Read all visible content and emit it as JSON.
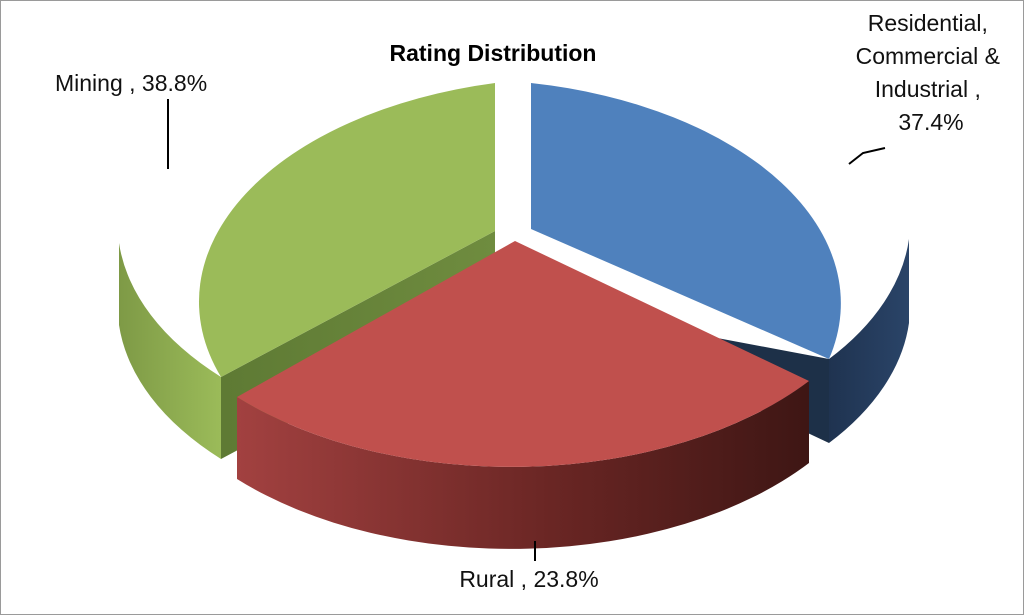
{
  "chart_data": {
    "type": "pie",
    "style": "3d-exploded",
    "title": "Rating Distribution",
    "slices": [
      {
        "name": "Residential, Commercial & Industrial",
        "value": 37.4,
        "label_lines": [
          "Residential,",
          "Commercial &",
          "Industrial ,",
          "37.4%"
        ],
        "color": "#4F81BD"
      },
      {
        "name": "Rural",
        "value": 23.8,
        "label_lines": [
          "Rural , 23.8%"
        ],
        "color": "#C0504D"
      },
      {
        "name": "Mining",
        "value": 38.8,
        "label_lines": [
          "Mining , 38.8%"
        ],
        "color": "#9BBB59"
      }
    ],
    "legend": "none",
    "data_labels": "category name and percentage"
  }
}
